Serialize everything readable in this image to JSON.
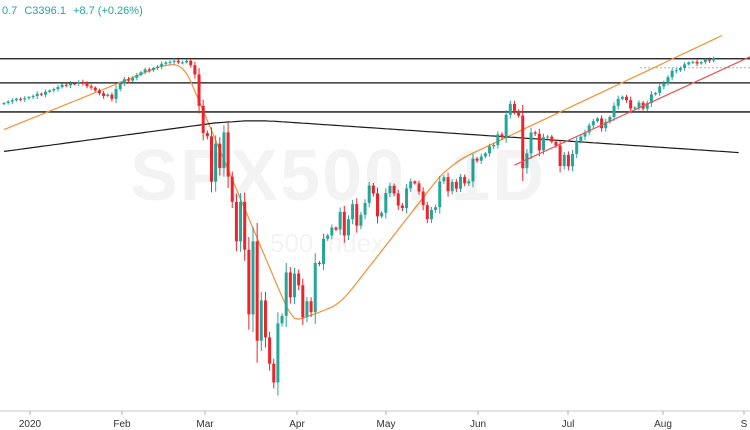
{
  "legend": {
    "open_partial": "0.7",
    "close": "C3396.1",
    "change": "+8.7 (+0.26%)"
  },
  "watermark": {
    "symbol": "SPX500, 1D",
    "description": "500 Index"
  },
  "colors": {
    "up": "#26a69a",
    "down": "#ef232a",
    "ma_short": "#f0913a",
    "ma_long": "#1b1b1b",
    "trendline": "#e05858",
    "horizontal_lines": "#111111",
    "dotted_line": "#b0b0b0",
    "legend_text": "#26a69a",
    "axis_text": "#333333"
  },
  "chart_data": {
    "type": "candlestick",
    "x_tick_labels": [
      {
        "label": "2020",
        "date": "2020-01-01"
      },
      {
        "label": "Feb",
        "date": "2020-02-03"
      },
      {
        "label": "Mar",
        "date": "2020-03-02"
      },
      {
        "label": "Apr",
        "date": "2020-04-01"
      },
      {
        "label": "May",
        "date": "2020-05-01"
      },
      {
        "label": "Jun",
        "date": "2020-06-01"
      },
      {
        "label": "Jul",
        "date": "2020-07-01"
      },
      {
        "label": "Aug",
        "date": "2020-08-03"
      },
      {
        "label": "S",
        "date": "2020-09-01"
      }
    ],
    "y_range": [
      2160,
      3460
    ],
    "close": [
      3235,
      3240,
      3245,
      3250,
      3248,
      3252,
      3256,
      3260,
      3268,
      3265,
      3275,
      3280,
      3285,
      3292,
      3300,
      3298,
      3305,
      3303,
      3310,
      3307,
      3295,
      3290,
      3280,
      3270,
      3260,
      3265,
      3250,
      3285,
      3305,
      3320,
      3315,
      3325,
      3335,
      3345,
      3355,
      3352,
      3360,
      3365,
      3375,
      3380,
      3382,
      3386,
      3380,
      3380,
      3386,
      3370,
      3337,
      3225,
      3128,
      3116,
      2954,
      3090,
      3003,
      3130,
      2972,
      2882,
      2741,
      2882,
      2711,
      2480,
      2741,
      2386,
      2530,
      2398,
      2304,
      2237,
      2448,
      2475,
      2630,
      2541,
      2626,
      2584,
      2470,
      2527,
      2488,
      2664,
      2660,
      2750,
      2762,
      2790,
      2783,
      2846,
      2762,
      2820,
      2874,
      2797,
      2836,
      2878,
      2940,
      2912,
      2830,
      2843,
      2913,
      2939,
      2912,
      2869,
      2860,
      2930,
      2955,
      2948,
      2919,
      2870,
      2820,
      2853,
      2863,
      2955,
      2970,
      2920,
      2953,
      2929,
      2971,
      2948,
      2955,
      3036,
      3029,
      3044,
      3055,
      3080,
      3085,
      3123,
      3113,
      3193,
      3232,
      3207,
      3190,
      3002,
      3055,
      3130,
      3125,
      3066,
      3113,
      3115,
      3097,
      3083,
      3010,
      3050,
      3009,
      3053,
      3100,
      3115,
      3130,
      3155,
      3170,
      3180,
      3145,
      3168,
      3185,
      3225,
      3250,
      3257,
      3245,
      3215,
      3219,
      3236,
      3215,
      3235,
      3266,
      3271,
      3294,
      3306,
      3327,
      3350,
      3352,
      3360,
      3373,
      3380,
      3382,
      3376,
      3381,
      3390,
      3387,
      3396
    ],
    "series": [
      {
        "name": "",
        "type": "moving-average",
        "values": [
          3140,
          3146,
          3152,
          3158,
          3164,
          3170,
          3176,
          3182,
          3188,
          3194,
          3200,
          3206,
          3212,
          3218,
          3224,
          3230,
          3236,
          3242,
          3248,
          3254,
          3260,
          3266,
          3272,
          3278,
          3284,
          3290,
          3296,
          3302,
          3308,
          3314,
          3320,
          3326,
          3332,
          3338,
          3344,
          3350,
          3356,
          3362,
          3366,
          3369,
          3371,
          3372,
          3368,
          3358,
          3340,
          3312,
          3277,
          3242,
          3207,
          3172,
          3137,
          3102,
          3067,
          3032,
          2997,
          2962,
          2927,
          2892,
          2857,
          2822,
          2787,
          2752,
          2717,
          2682,
          2647,
          2612,
          2577,
          2543,
          2510,
          2484,
          2466,
          2463,
          2467,
          2472,
          2477,
          2482,
          2488,
          2494,
          2500,
          2506,
          2515,
          2526,
          2540,
          2556,
          2574,
          2593,
          2612,
          2631,
          2650,
          2669,
          2688,
          2707,
          2726,
          2745,
          2764,
          2783,
          2802,
          2821,
          2840,
          2859,
          2878,
          2897,
          2916,
          2935,
          2954,
          2971,
          2986,
          2999,
          3011,
          3022,
          3032,
          3041,
          3049,
          3056,
          3063,
          3070,
          3077,
          3084,
          3091,
          3098,
          3105,
          3112,
          3119,
          3126,
          3133,
          3140,
          3147,
          3154,
          3161,
          3168,
          3175,
          3182,
          3189,
          3196,
          3203,
          3210,
          3217,
          3224,
          3231,
          3238,
          3245,
          3252,
          3259,
          3266,
          3273,
          3280,
          3287,
          3294,
          3301,
          3308,
          3315,
          3322,
          3329,
          3336,
          3343,
          3350,
          3357,
          3364,
          3371,
          3378,
          3385,
          3392,
          3399,
          3406,
          3413,
          3420,
          3427,
          3434,
          3441,
          3448,
          3455,
          3462,
          3469,
          3476
        ]
      },
      {
        "name": "",
        "type": "moving-average",
        "values": [
          3062,
          3064,
          3066,
          3068,
          3070,
          3072,
          3074,
          3076,
          3078,
          3080,
          3082,
          3084,
          3086,
          3088,
          3090,
          3092,
          3094,
          3096,
          3098,
          3100,
          3102,
          3104,
          3106,
          3108,
          3110,
          3112,
          3114,
          3116,
          3118,
          3120,
          3122,
          3124,
          3126,
          3128,
          3130,
          3132,
          3134,
          3136,
          3138,
          3140,
          3142,
          3144,
          3146,
          3148,
          3150,
          3152,
          3154,
          3156,
          3158,
          3160,
          3162,
          3164,
          3165,
          3166,
          3167,
          3168,
          3169,
          3170,
          3171,
          3171,
          3171,
          3171,
          3171,
          3171,
          3170,
          3170,
          3169,
          3168,
          3167,
          3166,
          3165,
          3164,
          3163,
          3162,
          3161,
          3160,
          3159,
          3158,
          3157,
          3156,
          3155,
          3154,
          3153,
          3152,
          3151,
          3150,
          3149,
          3148,
          3147,
          3146,
          3145,
          3144,
          3143,
          3142,
          3141,
          3140,
          3139,
          3138,
          3137,
          3136,
          3135,
          3134,
          3133,
          3132,
          3131,
          3130,
          3129,
          3128,
          3127,
          3126,
          3125,
          3124,
          3123,
          3122,
          3121,
          3120,
          3119,
          3118,
          3117,
          3116,
          3115,
          3114,
          3113,
          3112,
          3111,
          3110,
          3109,
          3108,
          3107,
          3106,
          3105,
          3104,
          3103,
          3102,
          3101,
          3100,
          3099,
          3098,
          3097,
          3096,
          3095,
          3094,
          3093,
          3092,
          3091,
          3090,
          3089,
          3088,
          3087,
          3086,
          3085,
          3084,
          3083,
          3082,
          3081,
          3080,
          3079,
          3078,
          3077,
          3076,
          3075,
          3074,
          3073,
          3072,
          3071,
          3070,
          3069,
          3068,
          3067,
          3066,
          3065,
          3064,
          3063,
          3062,
          3061,
          3060,
          3059,
          3058
        ]
      }
    ],
    "horizontal_lines": [
      3393,
      3307,
      3203
    ],
    "dotted_line": 3361,
    "trendline": {
      "from": {
        "index": 123,
        "value": 3013
      },
      "to": {
        "index": 176,
        "value": 3393
      }
    },
    "grid": false
  }
}
